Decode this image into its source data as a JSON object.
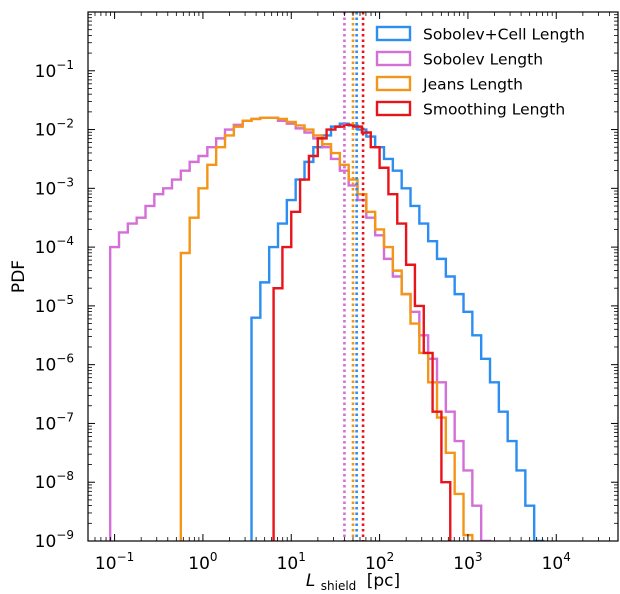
{
  "chart_data": {
    "type": "line",
    "subtype": "step-histogram",
    "xlabel": {
      "main": "L",
      "sub": "shield",
      "unit": "[pc]"
    },
    "ylabel": "PDF",
    "xscale": "log",
    "yscale": "log",
    "xlim": [
      0.05,
      50000
    ],
    "ylim": [
      1e-09,
      1
    ],
    "x_ticks": [
      {
        "value": 0.1,
        "base": "10",
        "exp": "−1"
      },
      {
        "value": 1,
        "base": "10",
        "exp": "0"
      },
      {
        "value": 10,
        "base": "10",
        "exp": "1"
      },
      {
        "value": 100,
        "base": "10",
        "exp": "2"
      },
      {
        "value": 1000,
        "base": "10",
        "exp": "3"
      },
      {
        "value": 10000,
        "base": "10",
        "exp": "4"
      }
    ],
    "y_ticks": [
      {
        "value": 1e-09,
        "base": "10",
        "exp": "−9"
      },
      {
        "value": 1e-08,
        "base": "10",
        "exp": "−8"
      },
      {
        "value": 1e-07,
        "base": "10",
        "exp": "−7"
      },
      {
        "value": 1e-06,
        "base": "10",
        "exp": "−6"
      },
      {
        "value": 1e-05,
        "base": "10",
        "exp": "−5"
      },
      {
        "value": 0.0001,
        "base": "10",
        "exp": "−4"
      },
      {
        "value": 0.001,
        "base": "10",
        "exp": "−3"
      },
      {
        "value": 0.01,
        "base": "10",
        "exp": "−2"
      },
      {
        "value": 0.1,
        "base": "10",
        "exp": "−1"
      }
    ],
    "grid": false,
    "legend_position": "top-right",
    "series": [
      {
        "name": "Sobolev+Cell Length",
        "color": "#2b8ef0",
        "median": 55,
        "x_log10": [
          0.6,
          0.7,
          0.8,
          0.9,
          1.0,
          1.1,
          1.2,
          1.3,
          1.4,
          1.5,
          1.6,
          1.7,
          1.8,
          1.9,
          2.0,
          2.1,
          2.2,
          2.3,
          2.4,
          2.5,
          2.6,
          2.7,
          2.8,
          2.9,
          3.0,
          3.1,
          3.2,
          3.3,
          3.4,
          3.5,
          3.6,
          3.7,
          3.8
        ],
        "y_log10": [
          -5.2,
          -4.6,
          -4.0,
          -3.6,
          -3.2,
          -2.85,
          -2.55,
          -2.3,
          -2.1,
          -1.95,
          -1.9,
          -1.93,
          -2.0,
          -2.12,
          -2.3,
          -2.5,
          -2.7,
          -3.0,
          -3.3,
          -3.6,
          -3.9,
          -4.2,
          -4.5,
          -4.8,
          -5.1,
          -5.5,
          -5.9,
          -6.3,
          -6.8,
          -7.3,
          -7.8,
          -8.4,
          -9.0
        ]
      },
      {
        "name": "Sobolev Length",
        "color": "#d36fd6",
        "median": 40,
        "x_log10": [
          -1.0,
          -0.9,
          -0.8,
          -0.7,
          -0.6,
          -0.5,
          -0.4,
          -0.3,
          -0.2,
          -0.1,
          0.0,
          0.1,
          0.2,
          0.3,
          0.4,
          0.5,
          0.6,
          0.7,
          0.8,
          0.9,
          1.0,
          1.1,
          1.2,
          1.3,
          1.4,
          1.5,
          1.6,
          1.7,
          1.8,
          1.9,
          2.0,
          2.1,
          2.2,
          2.3,
          2.4,
          2.5,
          2.6,
          2.7,
          2.8,
          2.9,
          3.0,
          3.1,
          3.2,
          3.3,
          3.4,
          3.5,
          3.6,
          3.7,
          3.8
        ],
        "y_log10": [
          -4.0,
          -3.75,
          -3.6,
          -3.5,
          -3.3,
          -3.1,
          -3.0,
          -2.85,
          -2.7,
          -2.55,
          -2.45,
          -2.3,
          -2.15,
          -2.0,
          -1.92,
          -1.85,
          -1.82,
          -1.8,
          -1.8,
          -1.85,
          -1.9,
          -1.98,
          -2.05,
          -2.15,
          -2.3,
          -2.5,
          -2.7,
          -2.95,
          -3.2,
          -3.5,
          -3.8,
          -4.2,
          -4.5,
          -4.8,
          -5.1,
          -5.5,
          -5.9,
          -6.3,
          -6.8,
          -7.3,
          -7.8,
          -8.4,
          -9.0,
          -9.5,
          -9.9,
          -9.9,
          -9.9,
          -9.9,
          -9.9
        ]
      },
      {
        "name": "Jeans Length",
        "color": "#f39517",
        "median": 50,
        "x_log10": [
          -0.2,
          -0.1,
          0.0,
          0.1,
          0.2,
          0.3,
          0.4,
          0.5,
          0.6,
          0.7,
          0.8,
          0.9,
          1.0,
          1.1,
          1.2,
          1.3,
          1.4,
          1.5,
          1.6,
          1.7,
          1.8,
          1.9,
          2.0,
          2.1,
          2.2,
          2.3,
          2.4,
          2.5,
          2.6,
          2.7,
          2.8,
          2.9,
          3.0,
          3.1
        ],
        "y_log10": [
          -4.1,
          -3.5,
          -3.0,
          -2.6,
          -2.3,
          -2.1,
          -1.95,
          -1.85,
          -1.82,
          -1.8,
          -1.8,
          -1.82,
          -1.87,
          -1.93,
          -2.0,
          -2.1,
          -2.25,
          -2.4,
          -2.6,
          -2.85,
          -3.1,
          -3.4,
          -3.7,
          -4.0,
          -4.4,
          -4.8,
          -5.3,
          -5.8,
          -6.3,
          -6.9,
          -7.5,
          -8.2,
          -8.9,
          -9.6
        ]
      },
      {
        "name": "Smoothing Length",
        "color": "#e8141b",
        "median": 65,
        "x_log10": [
          0.85,
          0.95,
          1.05,
          1.15,
          1.25,
          1.35,
          1.45,
          1.55,
          1.65,
          1.75,
          1.85,
          1.95,
          2.05,
          2.15,
          2.25,
          2.35,
          2.45,
          2.55,
          2.65,
          2.75
        ],
        "y_log10": [
          -4.7,
          -4.0,
          -3.4,
          -2.85,
          -2.45,
          -2.15,
          -2.0,
          -1.95,
          -1.92,
          -1.95,
          -2.05,
          -2.3,
          -2.65,
          -3.1,
          -3.6,
          -4.3,
          -5.0,
          -5.8,
          -6.8,
          -8.0
        ]
      }
    ]
  }
}
